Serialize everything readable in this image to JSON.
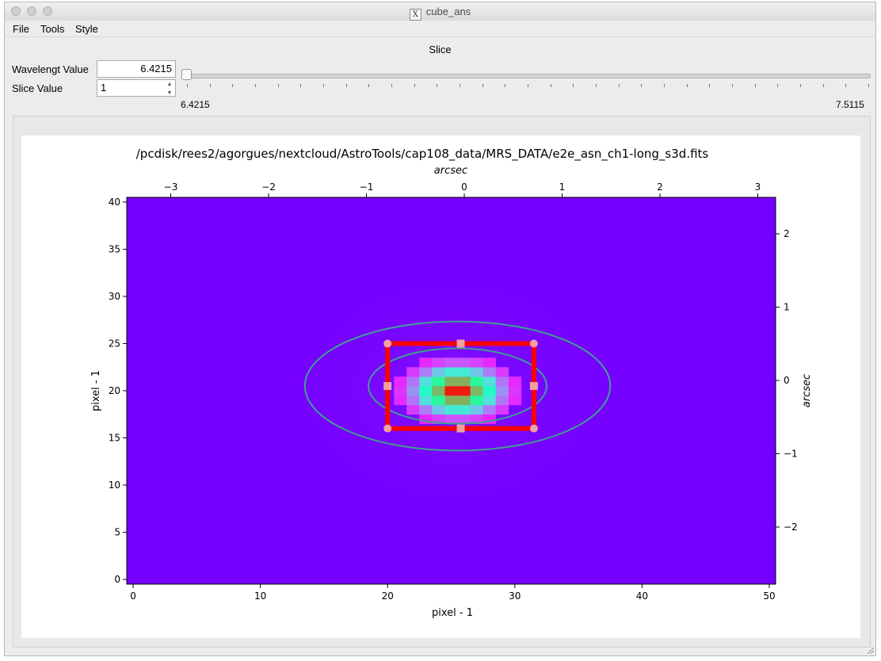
{
  "window": {
    "title": "cube_ans"
  },
  "menu": [
    "File",
    "Tools",
    "Style"
  ],
  "slice_panel": {
    "heading": "Slice",
    "wavelength_label": "Wavelengt Value",
    "wavelength_value": "6.4215",
    "slice_label": "Slice Value",
    "slice_value": "1",
    "slider_min_label": "6.4215",
    "slider_max_label": "7.5115",
    "slider_fraction": 0.0
  },
  "plot": {
    "title": "/pcdisk/rees2/agorgues/nextcloud/AstroTools/cap108_data/MRS_DATA/e2e_asn_ch1-long_s3d.fits",
    "xlabel": "pixel - 1",
    "ylabel": "pixel - 1",
    "top_xlabel": "arcsec",
    "right_ylabel": "arcsec",
    "background_color": "#7500ff"
  },
  "chart_data": {
    "type": "heatmap",
    "xlim": [
      -0.5,
      50.5
    ],
    "ylim": [
      -0.5,
      40.5
    ],
    "x_ticks": [
      0,
      10,
      20,
      30,
      40,
      50
    ],
    "y_ticks": [
      0,
      5,
      10,
      15,
      20,
      25,
      30,
      35,
      40
    ],
    "top_ticks": [
      -3,
      -2,
      -1,
      0,
      1,
      2,
      3
    ],
    "top_tick_labels": [
      "−3",
      "−2",
      "−1",
      "0",
      "1",
      "2",
      "3"
    ],
    "right_ticks": [
      -2,
      -1,
      0,
      1,
      2
    ],
    "right_tick_labels": [
      "−2",
      "−1",
      "0",
      "1",
      "2"
    ],
    "colormap": "rainbow",
    "peak_pixel": [
      26,
      20
    ],
    "rectangle": {
      "x0": 20,
      "x1": 31.5,
      "y0": 16,
      "y1": 25,
      "color": "#ff0000"
    },
    "ellipses": [
      {
        "cx": 25.5,
        "cy": 20.5,
        "rx": 7,
        "ry": 7,
        "color": "#3f9f8f"
      },
      {
        "cx": 25.5,
        "cy": 20.5,
        "rx": 12,
        "ry": 12,
        "color": "#3f9f8f"
      }
    ]
  }
}
